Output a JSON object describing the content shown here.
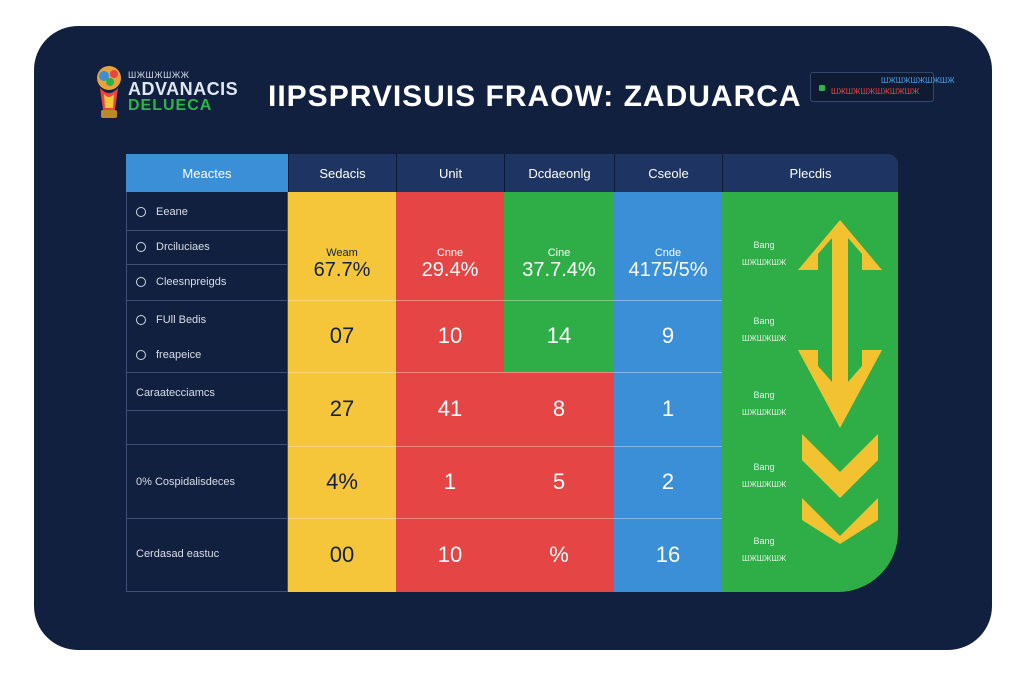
{
  "header": {
    "brand_line1": "ШЖШЖШЖЖ",
    "brand_line2": "ADVANACIS",
    "brand_line3": "DELUECA",
    "title": "IIPSPRVISUIS FRAOW: ZADUARCA",
    "badge_top": "ШЖШЖШЖШЖШЖ",
    "badge_bottom": "ШЖШЖШЖШЖШЖШЖ"
  },
  "table": {
    "columns": [
      "Meactes",
      "Sedacis",
      "Unit",
      "Dcdaeonlg",
      "Cseole",
      "Plecdis"
    ],
    "row_labels": [
      {
        "text": "Eeane",
        "radio": true
      },
      {
        "text": "Drciluciaes",
        "radio": true
      },
      {
        "text": "Cleesnpreigds",
        "radio": true
      },
      {
        "text": "FUll Bedis",
        "radio": true
      },
      {
        "text": "freapeice",
        "radio": true
      },
      {
        "text": "Caraatecciamcs",
        "radio": false
      },
      {
        "text": "",
        "radio": false
      },
      {
        "text": "0% Cospidalisdeces",
        "radio": false
      },
      {
        "text": "Cerdasad eastuc",
        "radio": false
      }
    ],
    "pct_row": [
      {
        "label": "Weam",
        "value": "67.7%"
      },
      {
        "label": "Cnne",
        "value": "29.4%"
      },
      {
        "label": "Cine",
        "value": "37.7.4%"
      },
      {
        "label": "Cnde",
        "value": "4175/5%"
      }
    ],
    "rows": [
      [
        "07",
        "10",
        "14",
        "9"
      ],
      [
        "27",
        "41",
        "8",
        "1"
      ],
      [
        "4%",
        "1",
        "5",
        "2"
      ],
      [
        "00",
        "10",
        "%",
        "16"
      ]
    ],
    "status": [
      {
        "label": "Bang",
        "sub": "ШЖШЖШЖ"
      },
      {
        "label": "Bang",
        "sub": "ШЖШЖШЖ"
      },
      {
        "label": "Bang",
        "sub": "ШЖШЖШЖ"
      },
      {
        "label": "Bang",
        "sub": "ШЖШЖШЖ"
      },
      {
        "label": "Bang",
        "sub": "ШЖШЖШЖ"
      }
    ]
  },
  "colors": {
    "panel": "#12203f",
    "yellow": "#f5c53a",
    "red": "#e64545",
    "green": "#2fae48",
    "blue": "#3a8fd6",
    "arrow": "#f2c230"
  },
  "icons": [
    "world-cup-trophy-icon",
    "radio-icon",
    "up-down-arrow-icon",
    "chevron-down-icon"
  ]
}
